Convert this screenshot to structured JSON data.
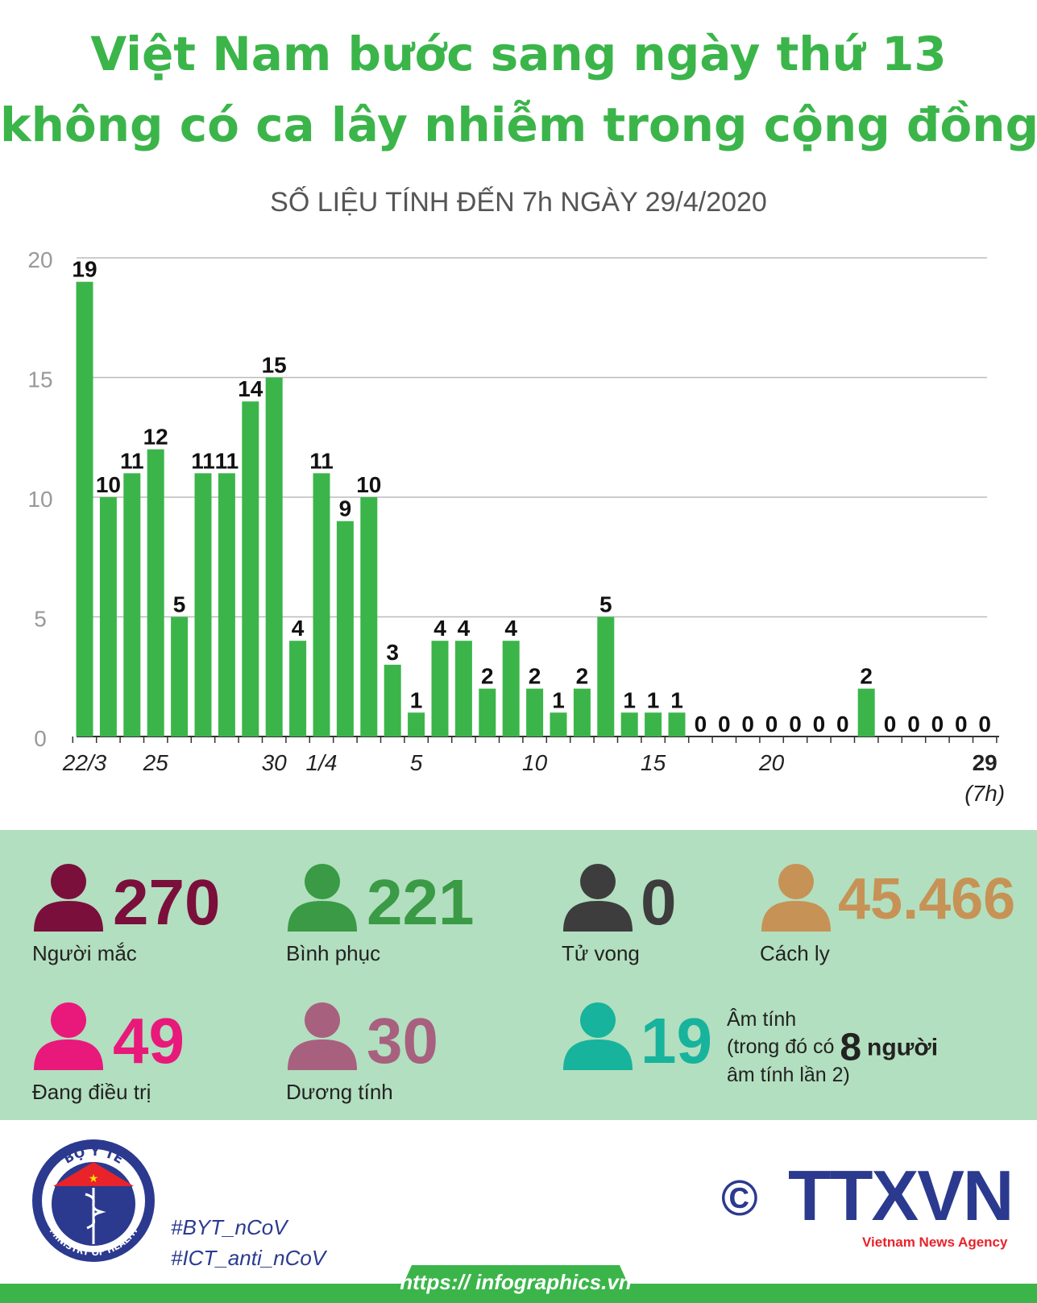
{
  "header": {
    "title_line1": "Việt Nam bước sang ngày thứ 13",
    "title_line2": "không có ca lây nhiễm trong cộng đồng",
    "subtitle": "SỐ LIỆU TÍNH ĐẾN 7h NGÀY 29/4/2020"
  },
  "chart_data": {
    "type": "bar",
    "categories": [
      "22/3",
      "23/3",
      "24/3",
      "25/3",
      "26/3",
      "27/3",
      "28/3",
      "29/3",
      "30/3",
      "31/3",
      "1/4",
      "2/4",
      "3/4",
      "4/4",
      "5/4",
      "6/4",
      "7/4",
      "8/4",
      "9/4",
      "10/4",
      "11/4",
      "12/4",
      "13/4",
      "14/4",
      "15/4",
      "16/4",
      "17/4",
      "18/4",
      "19/4",
      "20/4",
      "21/4",
      "22/4",
      "23/4",
      "24/4",
      "25/4",
      "26/4",
      "27/4",
      "28/4",
      "29/4"
    ],
    "values": [
      19,
      10,
      11,
      12,
      5,
      11,
      11,
      14,
      15,
      4,
      11,
      9,
      10,
      3,
      1,
      4,
      4,
      2,
      4,
      2,
      1,
      2,
      5,
      1,
      1,
      1,
      0,
      0,
      0,
      0,
      0,
      0,
      0,
      2,
      0,
      0,
      0,
      0,
      0
    ],
    "x_tick_labels": [
      {
        "index": 0,
        "label": "22/3"
      },
      {
        "index": 3,
        "label": "25"
      },
      {
        "index": 8,
        "label": "30"
      },
      {
        "index": 10,
        "label": "1/4"
      },
      {
        "index": 14,
        "label": "5"
      },
      {
        "index": 19,
        "label": "10"
      },
      {
        "index": 24,
        "label": "15"
      },
      {
        "index": 29,
        "label": "20"
      },
      {
        "index": 38,
        "label": "29",
        "sublabel": "(7h)"
      }
    ],
    "y_ticks": [
      0,
      5,
      10,
      15,
      20
    ],
    "ylim": [
      0,
      20
    ],
    "bar_color": "#3bb54a",
    "grid": true
  },
  "stats": [
    {
      "id": "infected",
      "value": "270",
      "label": "Người mắc",
      "color": "#7a0f3c"
    },
    {
      "id": "recovered",
      "value": "221",
      "label": "Bình phục",
      "color": "#3a9a45"
    },
    {
      "id": "deaths",
      "value": "0",
      "label": "Tử vong",
      "color": "#3d3d3d"
    },
    {
      "id": "quarantine",
      "value": "45.466",
      "label": "Cách ly",
      "color": "#c79255"
    },
    {
      "id": "treating",
      "value": "49",
      "label": "Đang điều trị",
      "color": "#e8197a"
    },
    {
      "id": "positive",
      "value": "30",
      "label": "Dương tính",
      "color": "#a8607f"
    },
    {
      "id": "negative",
      "value": "19",
      "label": "",
      "color": "#17b39c"
    }
  ],
  "negative_note": {
    "line1": "Âm tính",
    "line2_pre": "(trong đó có",
    "line2_num": "8",
    "line2_post": "người",
    "line3": "âm tính lần 2)"
  },
  "footer": {
    "logo_top": "BỘ Y TẾ",
    "logo_bottom": "MINISTRY OF HEALTH",
    "hashtag1": "#BYT_nCoV",
    "hashtag2": "#ICT_anti_nCoV",
    "copyright": "©",
    "brand": "TTXVN",
    "brand_sub": "Vietnam News Agency",
    "url": "https:// infographics.vn"
  }
}
